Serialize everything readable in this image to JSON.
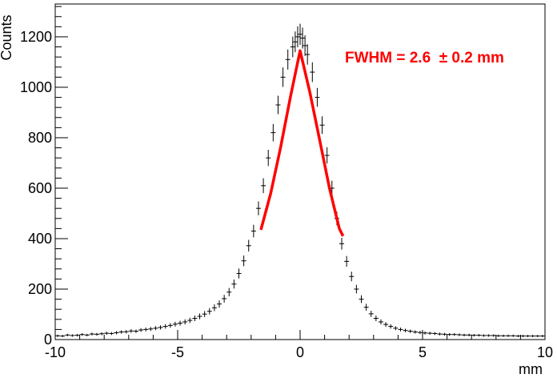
{
  "chart_data": {
    "type": "scatter",
    "xlabel": "mm",
    "ylabel": "Counts",
    "xlim": [
      -10,
      10
    ],
    "ylim": [
      0,
      1330
    ],
    "x_ticks": [
      -10,
      -5,
      0,
      5,
      10
    ],
    "y_ticks": [
      0,
      200,
      400,
      600,
      800,
      1000,
      1200
    ],
    "x_tick_labels": [
      "-10",
      "-5",
      "0",
      "5",
      "10"
    ],
    "y_tick_labels": [
      "0",
      "200",
      "400",
      "600",
      "800",
      "1000",
      "1200"
    ],
    "grid": false,
    "annotation": "FWHM = 2.6  ± 0.2 mm",
    "annotation_color": "#ff0000",
    "fit_color": "#ff0000",
    "marker_color": "#000000",
    "series": [
      {
        "style": "markers",
        "x": [
          -9.9,
          -9.7,
          -9.5,
          -9.3,
          -9.1,
          -8.9,
          -8.7,
          -8.5,
          -8.3,
          -8.1,
          -7.9,
          -7.7,
          -7.5,
          -7.3,
          -7.1,
          -6.9,
          -6.7,
          -6.5,
          -6.3,
          -6.1,
          -5.9,
          -5.7,
          -5.5,
          -5.3,
          -5.1,
          -4.9,
          -4.7,
          -4.5,
          -4.3,
          -4.1,
          -3.9,
          -3.7,
          -3.5,
          -3.3,
          -3.1,
          -2.9,
          -2.7,
          -2.5,
          -2.3,
          -2.1,
          -1.9,
          -1.7,
          -1.5,
          -1.3,
          -1.1,
          -0.9,
          -0.7,
          -0.5,
          -0.3,
          -0.2,
          -0.1,
          0.0,
          0.1,
          0.2,
          0.3,
          0.5,
          0.7,
          0.9,
          1.1,
          1.3,
          1.5,
          1.7,
          1.9,
          2.1,
          2.3,
          2.5,
          2.7,
          2.9,
          3.1,
          3.3,
          3.5,
          3.7,
          3.9,
          4.1,
          4.3,
          4.5,
          4.7,
          4.9,
          5.1,
          5.3,
          5.5,
          5.7,
          5.9,
          6.1,
          6.3,
          6.5,
          6.7,
          6.9,
          7.1,
          7.3,
          7.5,
          7.7,
          7.9,
          8.1,
          8.3,
          8.5,
          8.7,
          8.9,
          9.1,
          9.3,
          9.5,
          9.7,
          9.9
        ],
        "y": [
          15,
          14,
          18,
          16,
          17,
          20,
          18,
          22,
          21,
          23,
          25,
          24,
          27,
          30,
          31,
          34,
          33,
          38,
          40,
          42,
          45,
          48,
          52,
          56,
          61,
          65,
          70,
          76,
          84,
          92,
          101,
          112,
          126,
          141,
          162,
          188,
          220,
          262,
          312,
          372,
          430,
          520,
          610,
          720,
          820,
          930,
          1040,
          1110,
          1160,
          1180,
          1200,
          1210,
          1195,
          1165,
          1130,
          1060,
          960,
          850,
          730,
          600,
          480,
          380,
          310,
          250,
          200,
          160,
          128,
          102,
          84,
          70,
          60,
          52,
          45,
          40,
          36,
          33,
          30,
          28,
          26,
          25,
          24,
          22,
          21,
          20,
          20,
          19,
          18,
          18,
          17,
          17,
          16,
          16,
          16,
          15,
          15,
          15,
          15,
          14,
          14,
          14,
          14,
          14,
          14
        ]
      },
      {
        "name": "",
        "style": "line",
        "x": [
          -1.6,
          -1.2,
          -0.8,
          -0.4,
          0.0,
          0.4,
          0.8,
          1.2,
          1.6,
          1.75
        ],
        "y": [
          435,
          580,
          760,
          960,
          1145,
          980,
          790,
          600,
          440,
          410
        ]
      }
    ]
  }
}
